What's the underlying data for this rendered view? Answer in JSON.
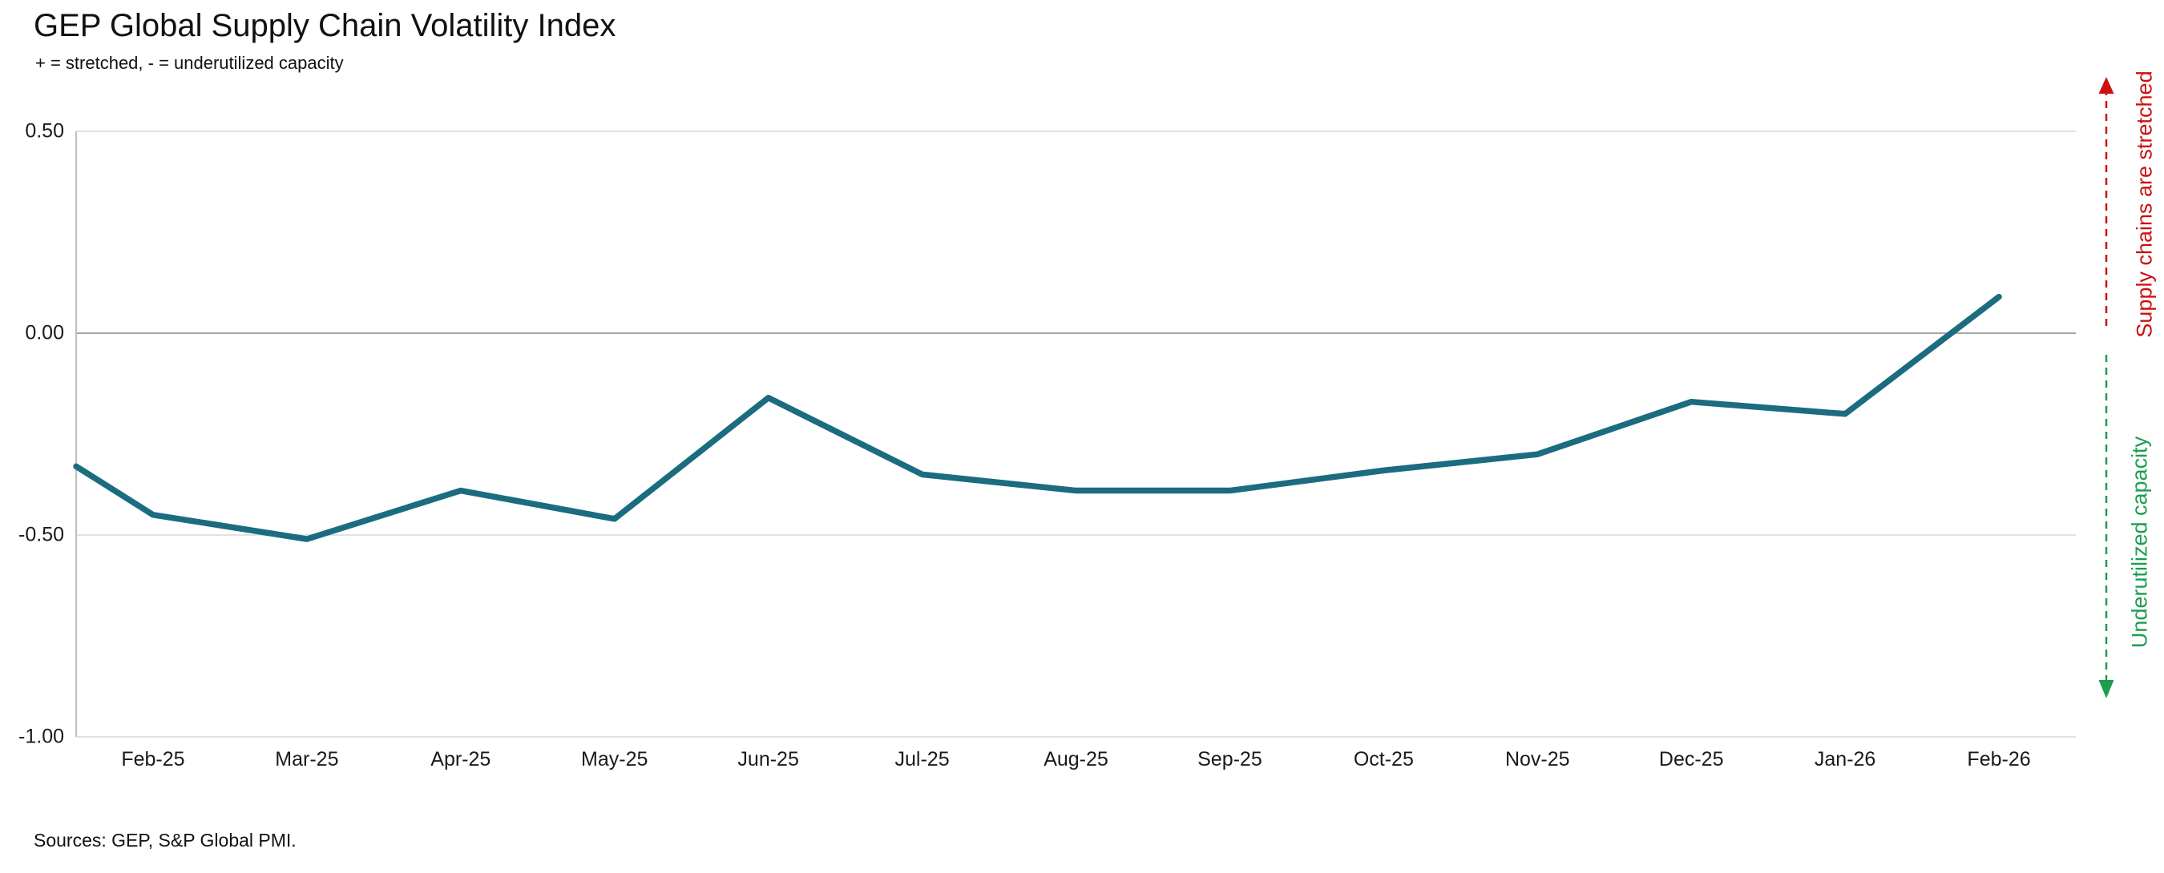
{
  "header": {
    "title": "GEP Global Supply Chain Volatility Index",
    "subtitle": "+ = stretched, - = underutilized capacity"
  },
  "footer": {
    "sources": "Sources: GEP, S&P Global PMI."
  },
  "annotations": {
    "stretched": {
      "label": "Supply chains are stretched",
      "color": "#cc1111",
      "direction": "up"
    },
    "underutilized": {
      "label": "Underutilized capacity",
      "color": "#1b9e4f",
      "direction": "down"
    }
  },
  "colors": {
    "line": "#1c6c80",
    "zero_line": "#a6a6a6",
    "gridline": "#d9d9d9",
    "axis_line": "#bfbfbf",
    "text": "#1a1a1a"
  },
  "chart_data": {
    "type": "line",
    "title": "GEP Global Supply Chain Volatility Index",
    "subtitle": "+ = stretched, - = underutilized capacity",
    "xlabel": "",
    "ylabel": "",
    "ylim": [
      -1.0,
      0.5
    ],
    "grid": "horizontal",
    "legend": "none",
    "categories": [
      "",
      "Feb-25",
      "Mar-25",
      "Apr-25",
      "May-25",
      "Jun-25",
      "Jul-25",
      "Aug-25",
      "Sep-25",
      "Oct-25",
      "Nov-25",
      "Dec-25",
      "Jan-26",
      "Feb-26"
    ],
    "first_point_unlabeled": true,
    "series": [
      {
        "name": "GEP Global Supply Chain Volatility Index",
        "values": [
          -0.33,
          -0.45,
          -0.51,
          -0.39,
          -0.46,
          -0.16,
          -0.35,
          -0.39,
          -0.39,
          -0.34,
          -0.3,
          -0.17,
          -0.2,
          0.09
        ]
      }
    ],
    "y_ticks": [
      {
        "label": "0.50",
        "value": 0.5
      },
      {
        "label": "0.00",
        "value": 0.0
      },
      {
        "label": "-0.50",
        "value": -0.5
      },
      {
        "label": "-1.00",
        "value": -1.0
      }
    ]
  }
}
